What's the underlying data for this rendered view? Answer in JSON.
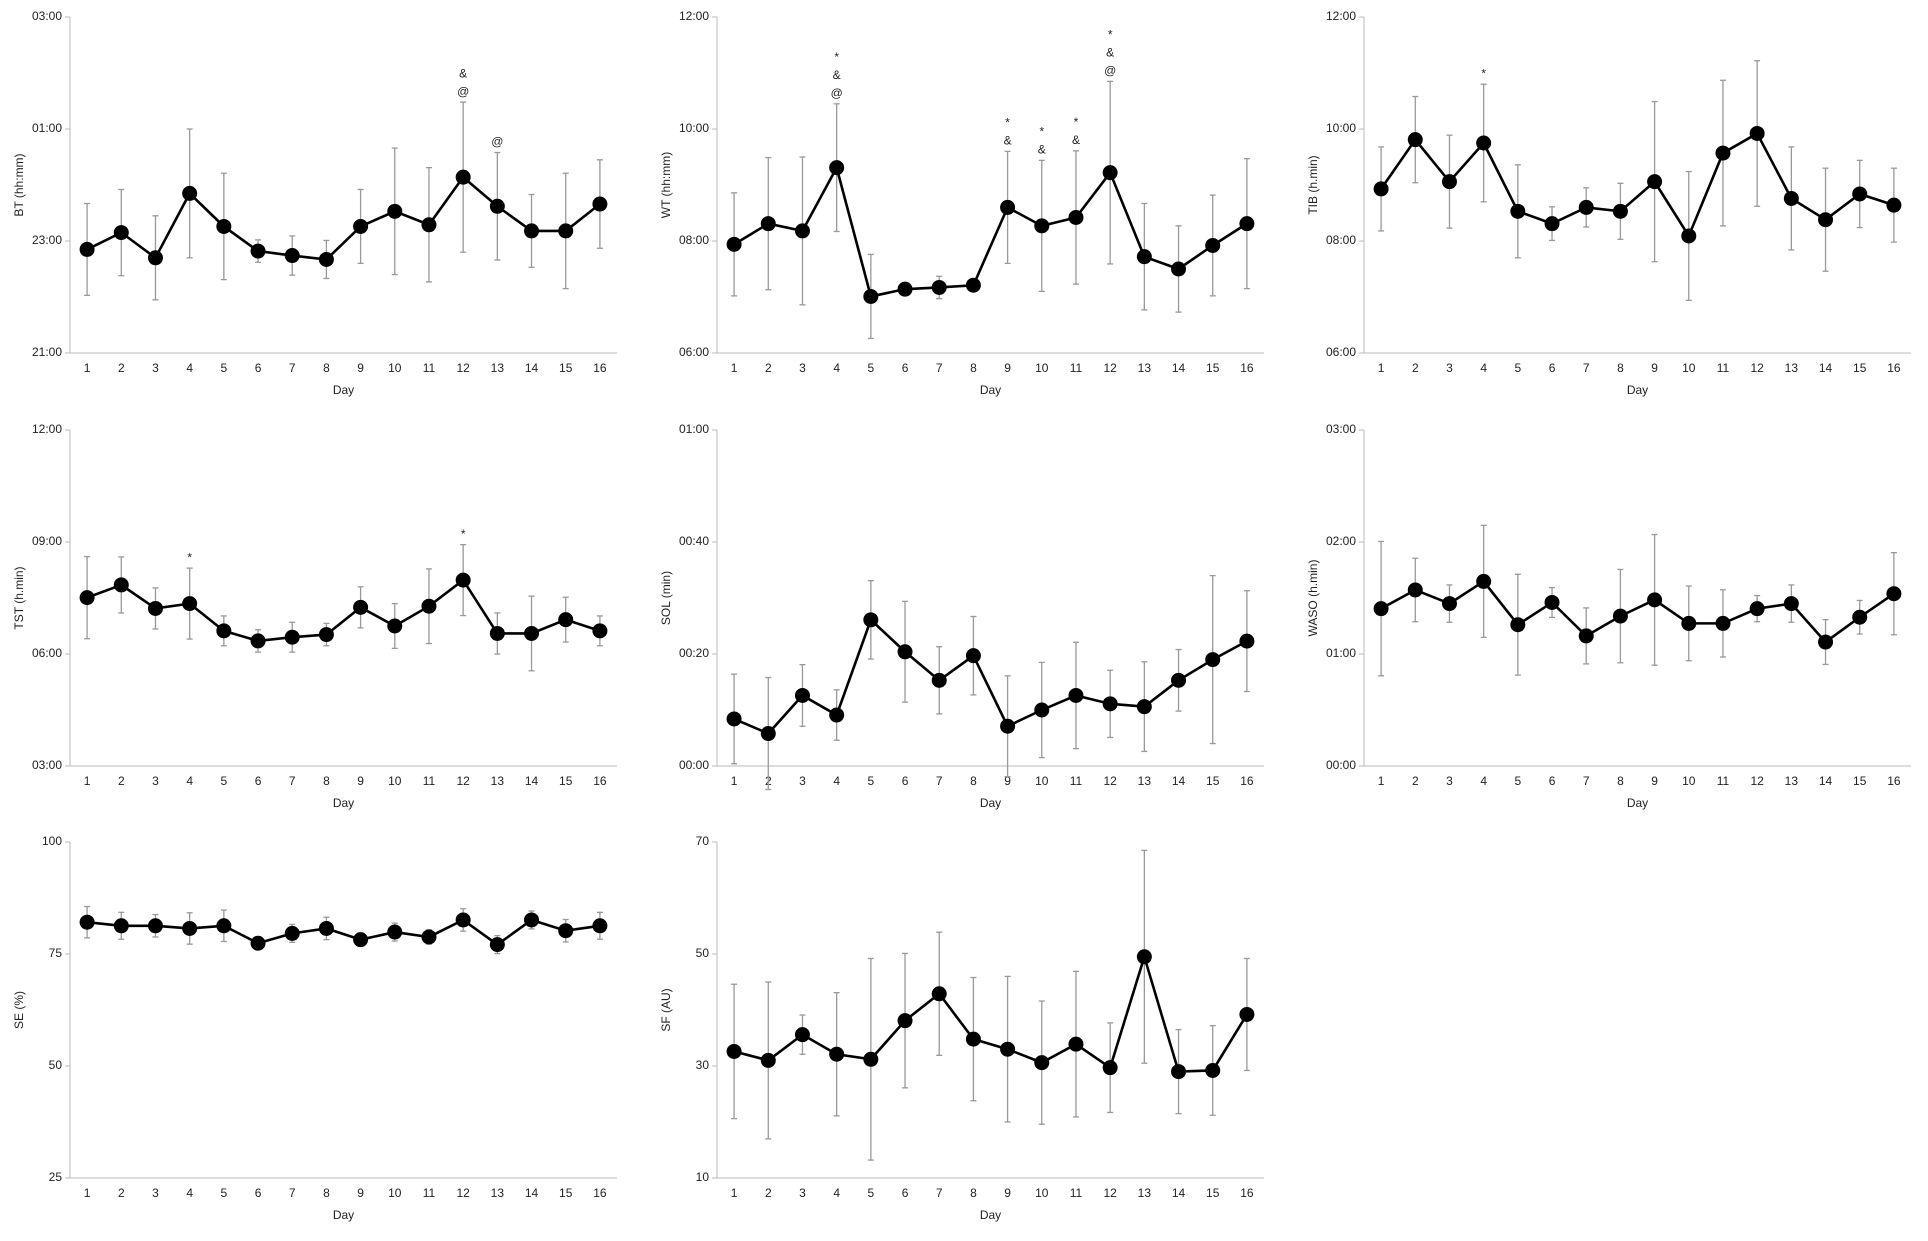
{
  "chart_data": [
    {
      "type": "line",
      "y_label": "BT (hh:mm)",
      "x_label": "Day",
      "color": "#000000",
      "error_color": "#999999",
      "categories": [
        "1",
        "2",
        "3",
        "4",
        "5",
        "6",
        "7",
        "8",
        "9",
        "10",
        "11",
        "12",
        "13",
        "14",
        "15",
        "16"
      ],
      "values": [
        22.85,
        23.15,
        22.7,
        23.85,
        23.26,
        22.82,
        22.74,
        22.67,
        23.26,
        23.53,
        23.29,
        24.14,
        23.62,
        23.18,
        23.18,
        23.66
      ],
      "errors": [
        0.82,
        0.77,
        0.75,
        1.15,
        0.95,
        0.2,
        0.35,
        0.34,
        0.66,
        1.13,
        1.02,
        1.34,
        0.96,
        0.65,
        1.03,
        0.79
      ],
      "annotations": [
        null,
        null,
        null,
        null,
        null,
        null,
        null,
        null,
        null,
        null,
        null,
        [
          "&",
          "@"
        ],
        [
          "@"
        ],
        null,
        null,
        null
      ],
      "ylim": [
        21,
        27
      ],
      "yticks": [
        {
          "value": 21,
          "label": "21:00"
        },
        {
          "value": 23,
          "label": "23:00"
        },
        {
          "value": 25,
          "label": "01:00"
        },
        {
          "value": 27,
          "label": "03:00"
        }
      ]
    },
    {
      "type": "line",
      "y_label": "WT (hh:mm)",
      "x_label": "Day",
      "color": "#000000",
      "error_color": "#999999",
      "categories": [
        "1",
        "2",
        "3",
        "4",
        "5",
        "6",
        "7",
        "8",
        "9",
        "10",
        "11",
        "12",
        "13",
        "14",
        "15",
        "16"
      ],
      "values": [
        7.94,
        8.31,
        8.18,
        9.31,
        7.01,
        7.14,
        7.17,
        7.21,
        8.6,
        8.27,
        8.42,
        9.22,
        7.72,
        7.5,
        7.92,
        8.31
      ],
      "errors": [
        0.92,
        1.18,
        1.32,
        1.14,
        0.75,
        0.1,
        0.2,
        0.1,
        1.0,
        1.17,
        1.19,
        1.63,
        0.95,
        0.77,
        0.9,
        1.16
      ],
      "annotations": [
        null,
        null,
        null,
        [
          "*",
          "&",
          "@"
        ],
        null,
        null,
        null,
        null,
        [
          "*",
          "&"
        ],
        [
          "*",
          "&"
        ],
        [
          "*",
          "&"
        ],
        [
          "*",
          "&",
          "@"
        ],
        null,
        null,
        null,
        null
      ],
      "ylim": [
        6,
        12
      ],
      "yticks": [
        {
          "value": 6,
          "label": "06:00"
        },
        {
          "value": 8,
          "label": "08:00"
        },
        {
          "value": 10,
          "label": "10:00"
        },
        {
          "value": 12,
          "label": "12:00"
        }
      ]
    },
    {
      "type": "line",
      "y_label": "TIB (h.min)",
      "x_label": "Day",
      "color": "#000000",
      "error_color": "#999999",
      "categories": [
        "1",
        "2",
        "3",
        "4",
        "5",
        "6",
        "7",
        "8",
        "9",
        "10",
        "11",
        "12",
        "13",
        "14",
        "15",
        "16"
      ],
      "values": [
        8.93,
        9.81,
        9.06,
        9.75,
        8.53,
        8.31,
        8.6,
        8.53,
        9.06,
        8.09,
        9.57,
        9.92,
        8.76,
        8.38,
        8.84,
        8.64
      ],
      "errors": [
        0.75,
        0.77,
        0.83,
        1.05,
        0.83,
        0.3,
        0.35,
        0.5,
        1.43,
        1.15,
        1.3,
        1.3,
        0.92,
        0.92,
        0.6,
        0.66
      ],
      "annotations": [
        null,
        null,
        null,
        [
          "*"
        ],
        null,
        null,
        null,
        null,
        null,
        null,
        null,
        null,
        null,
        null,
        null,
        null
      ],
      "ylim": [
        6,
        12
      ],
      "yticks": [
        {
          "value": 6,
          "label": "06:00"
        },
        {
          "value": 8,
          "label": "08:00"
        },
        {
          "value": 10,
          "label": "10:00"
        },
        {
          "value": 12,
          "label": "12:00"
        }
      ]
    },
    {
      "type": "line",
      "y_label": "TST (h.min)",
      "x_label": "Day",
      "color": "#000000",
      "error_color": "#999999",
      "categories": [
        "1",
        "2",
        "3",
        "4",
        "5",
        "6",
        "7",
        "8",
        "9",
        "10",
        "11",
        "12",
        "13",
        "14",
        "15",
        "16"
      ],
      "values": [
        7.51,
        7.85,
        7.22,
        7.35,
        6.62,
        6.35,
        6.45,
        6.52,
        7.25,
        6.75,
        7.28,
        7.98,
        6.55,
        6.55,
        6.92,
        6.62
      ],
      "errors": [
        1.1,
        0.75,
        0.55,
        0.95,
        0.4,
        0.3,
        0.4,
        0.3,
        0.55,
        0.6,
        1.0,
        0.95,
        0.55,
        1.0,
        0.6,
        0.4
      ],
      "annotations": [
        null,
        null,
        null,
        [
          "*"
        ],
        null,
        null,
        null,
        null,
        null,
        null,
        null,
        [
          "*"
        ],
        null,
        null,
        null,
        null
      ],
      "ylim": [
        3,
        12
      ],
      "yticks": [
        {
          "value": 3,
          "label": "03:00"
        },
        {
          "value": 6,
          "label": "06:00"
        },
        {
          "value": 9,
          "label": "09:00"
        },
        {
          "value": 12,
          "label": "12:00"
        }
      ]
    },
    {
      "type": "line",
      "y_label": "SOL (min)",
      "x_label": "Day",
      "color": "#000000",
      "error_color": "#999999",
      "categories": [
        "1",
        "2",
        "3",
        "4",
        "5",
        "6",
        "7",
        "8",
        "9",
        "10",
        "11",
        "12",
        "13",
        "14",
        "15",
        "16"
      ],
      "values": [
        8.4,
        5.8,
        12.6,
        9.1,
        26.1,
        20.4,
        15.3,
        19.7,
        7.1,
        10.0,
        12.6,
        11.1,
        10.6,
        15.3,
        19.0,
        22.3
      ],
      "errors": [
        8,
        10,
        5.5,
        4.5,
        7,
        9,
        6,
        7,
        9,
        8.5,
        9.5,
        6,
        8,
        5.5,
        15,
        9
      ],
      "annotations": [
        null,
        null,
        null,
        null,
        null,
        null,
        null,
        null,
        null,
        null,
        null,
        null,
        null,
        null,
        null,
        null
      ],
      "ylim": [
        0,
        60
      ],
      "yticks": [
        {
          "value": 0,
          "label": "00:00"
        },
        {
          "value": 20,
          "label": "00:20"
        },
        {
          "value": 40,
          "label": "00:40"
        },
        {
          "value": 60,
          "label": "01:00"
        }
      ]
    },
    {
      "type": "line",
      "y_label": "WASO (h.min)",
      "x_label": "Day",
      "color": "#000000",
      "error_color": "#999999",
      "categories": [
        "1",
        "2",
        "3",
        "4",
        "5",
        "6",
        "7",
        "8",
        "9",
        "10",
        "11",
        "12",
        "13",
        "14",
        "15",
        "16"
      ],
      "values": [
        84.3,
        94.3,
        87,
        98.9,
        75.7,
        87.6,
        69.7,
        80.3,
        89,
        76.4,
        76.4,
        84.3,
        87,
        66.4,
        79.7,
        92.3
      ],
      "errors": [
        36,
        17,
        10,
        30,
        27,
        8,
        15,
        25,
        35,
        20,
        18,
        7,
        10,
        12,
        9,
        22
      ],
      "annotations": [
        null,
        null,
        null,
        null,
        null,
        null,
        null,
        null,
        null,
        null,
        null,
        null,
        null,
        null,
        null,
        null
      ],
      "ylim": [
        0,
        180
      ],
      "yticks": [
        {
          "value": 0,
          "label": "00:00"
        },
        {
          "value": 60,
          "label": "01:00"
        },
        {
          "value": 120,
          "label": "02:00"
        },
        {
          "value": 180,
          "label": "03:00"
        }
      ]
    },
    {
      "type": "line",
      "y_label": "SE (%)",
      "x_label": "Day",
      "color": "#000000",
      "error_color": "#999999",
      "categories": [
        "1",
        "2",
        "3",
        "4",
        "5",
        "6",
        "7",
        "8",
        "9",
        "10",
        "11",
        "12",
        "13",
        "14",
        "15",
        "16"
      ],
      "values": [
        82.1,
        81.3,
        81.3,
        80.7,
        81.3,
        77.4,
        79.6,
        80.7,
        78.2,
        79.9,
        78.8,
        82.6,
        77.1,
        82.6,
        80.2,
        81.3
      ],
      "errors": [
        3.5,
        3,
        2.5,
        3.5,
        3.5,
        1.1,
        2,
        2.5,
        1.4,
        2,
        1.6,
        2.5,
        2,
        2,
        2.5,
        3
      ],
      "annotations": [
        null,
        null,
        null,
        null,
        null,
        null,
        null,
        null,
        null,
        null,
        null,
        null,
        null,
        null,
        null,
        null
      ],
      "ylim": [
        25,
        100
      ],
      "yticks": [
        25,
        50,
        75,
        100
      ]
    },
    {
      "type": "line",
      "y_label": "SF (AU)",
      "x_label": "Day",
      "color": "#000000",
      "error_color": "#999999",
      "categories": [
        "1",
        "2",
        "3",
        "4",
        "5",
        "6",
        "7",
        "8",
        "9",
        "10",
        "11",
        "12",
        "13",
        "14",
        "15",
        "16"
      ],
      "values": [
        32.6,
        31,
        35.6,
        32.1,
        31.2,
        38.1,
        42.9,
        34.8,
        33,
        30.6,
        33.9,
        29.7,
        49.5,
        29,
        29.2,
        39.2
      ],
      "errors": [
        12,
        14,
        3.5,
        11,
        18,
        12,
        11,
        11,
        13,
        11,
        13,
        8,
        19,
        7.5,
        8,
        10
      ],
      "annotations": [
        null,
        null,
        null,
        null,
        null,
        null,
        null,
        null,
        null,
        null,
        null,
        null,
        null,
        null,
        null,
        null
      ],
      "ylim": [
        10,
        70
      ],
      "yticks": [
        10,
        30,
        50,
        70
      ]
    }
  ]
}
